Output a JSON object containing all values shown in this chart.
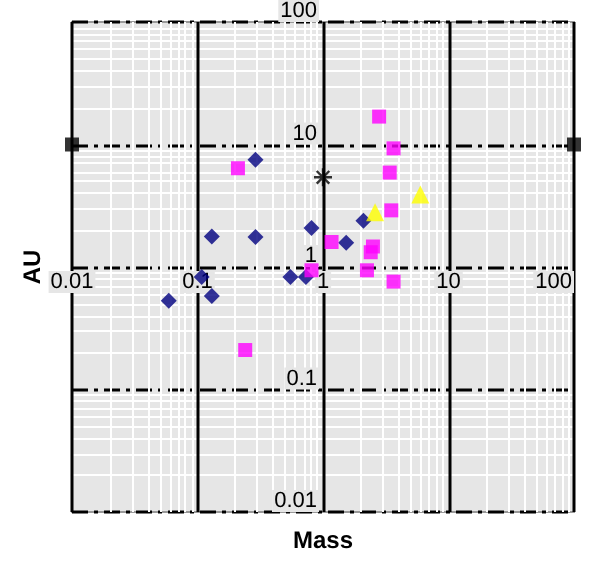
{
  "chart_data": {
    "type": "scatter",
    "xlabel": "Mass",
    "ylabel": "AU",
    "log": "xy",
    "grid": true,
    "xlim": [
      0.01,
      100
    ],
    "ylim": [
      0.01,
      100
    ],
    "xticks": [
      0.01,
      0.1,
      1,
      10,
      100
    ],
    "yticks": [
      0.01,
      0.1,
      1,
      10,
      100
    ],
    "series": [
      {
        "color": "#000080",
        "marker": "diamond",
        "x": [
          0.059,
          0.108,
          0.13,
          0.13,
          0.29,
          0.29,
          0.55,
          0.73,
          0.81,
          1.53,
          2.1
        ],
        "values": [
          0.53,
          0.83,
          0.58,
          1.77,
          7.5,
          1.76,
          0.83,
          0.83,
          2.08,
          1.58,
          2.39
        ]
      },
      {
        "color": "#ff00ff",
        "marker": "square",
        "x": [
          2.8,
          3.65,
          0.21,
          3.4,
          3.5,
          1.17,
          2.5,
          2.4,
          0.81,
          2.24,
          3.65,
          0.24
        ],
        "values": [
          16.9,
          9.3,
          6.4,
          5.9,
          2.9,
          1.6,
          1.47,
          1.32,
          0.94,
          0.94,
          0.76,
          0.21
        ]
      },
      {
        "color": "#ffff00",
        "marker": "triangle",
        "x": [
          2.6,
          5.96
        ],
        "values": [
          2.8,
          3.9
        ]
      },
      {
        "color": "#000000",
        "marker": "cross",
        "x": [
          1
        ],
        "values": [
          5.4
        ]
      },
      {
        "color": "#000000",
        "marker": "square",
        "x": [
          0.01,
          100
        ],
        "values": [
          10,
          10
        ]
      }
    ]
  }
}
